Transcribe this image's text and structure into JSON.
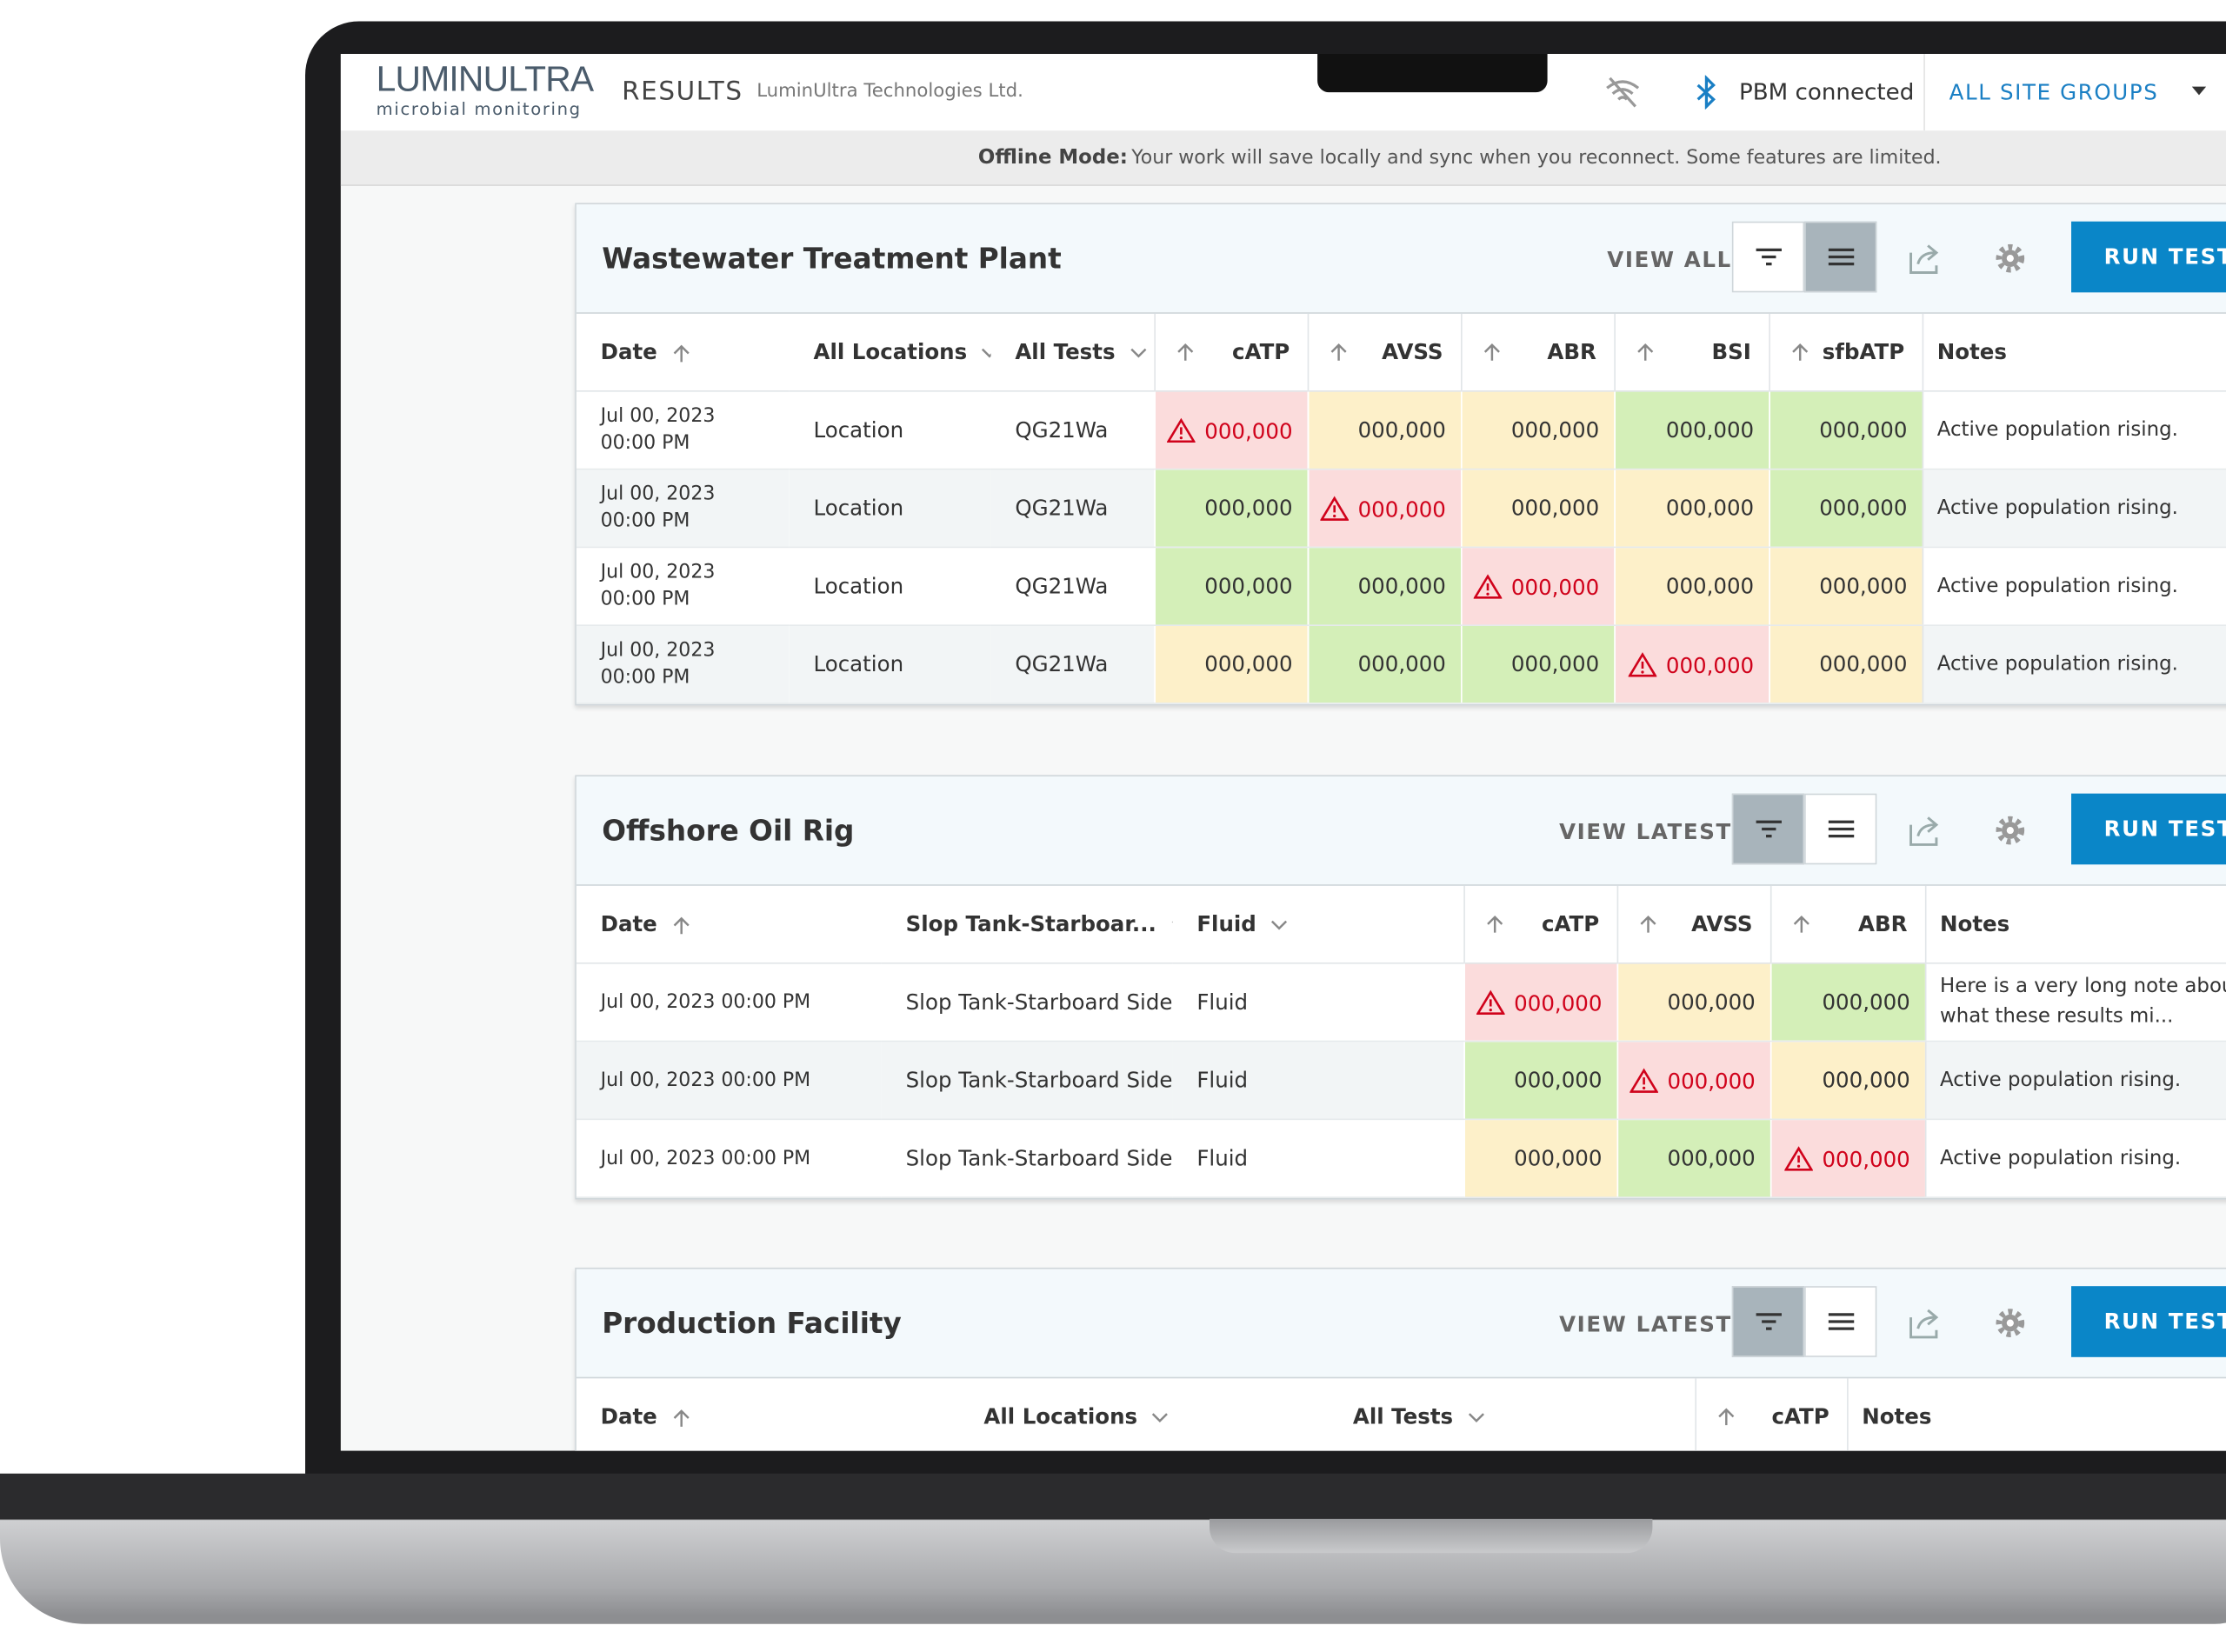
{
  "header": {
    "logo": "LUMINULTRA",
    "logo_sub": "microbial monitoring",
    "section": "RESULTS",
    "company": "LuminUltra Technologies Ltd.",
    "connection": "PBM connected",
    "site_groups": "ALL SITE GROUPS"
  },
  "banner": {
    "label": "Offline Mode:",
    "message": "Your work will save locally and sync when you reconnect. Some features are limited."
  },
  "panels": [
    {
      "title": "Wastewater Treatment Plant",
      "view_button": "VIEW ALL",
      "run_button": "RUN TESTS",
      "filter_active": false,
      "columns": [
        "Date",
        "All Locations",
        "All Tests",
        "cATP",
        "AVSS",
        "ABR",
        "BSI",
        "sfbATP",
        "Notes"
      ],
      "rows": [
        {
          "date": "Jul 00, 2023",
          "time": "00:00 PM",
          "location": "Location",
          "test": "QG21Wa",
          "results": [
            {
              "value": "000,000",
              "level": "high"
            },
            {
              "value": "000,000",
              "level": "warn"
            },
            {
              "value": "000,000",
              "level": "warn"
            },
            {
              "value": "000,000",
              "level": "ok"
            },
            {
              "value": "000,000",
              "level": "ok"
            }
          ],
          "notes": "Active population rising."
        },
        {
          "date": "Jul 00, 2023",
          "time": "00:00 PM",
          "location": "Location",
          "test": "QG21Wa",
          "results": [
            {
              "value": "000,000",
              "level": "ok"
            },
            {
              "value": "000,000",
              "level": "high"
            },
            {
              "value": "000,000",
              "level": "warn"
            },
            {
              "value": "000,000",
              "level": "warn"
            },
            {
              "value": "000,000",
              "level": "ok"
            }
          ],
          "notes": "Active population rising."
        },
        {
          "date": "Jul 00, 2023",
          "time": "00:00 PM",
          "location": "Location",
          "test": "QG21Wa",
          "results": [
            {
              "value": "000,000",
              "level": "ok"
            },
            {
              "value": "000,000",
              "level": "ok"
            },
            {
              "value": "000,000",
              "level": "high"
            },
            {
              "value": "000,000",
              "level": "warn"
            },
            {
              "value": "000,000",
              "level": "warn"
            }
          ],
          "notes": "Active population rising."
        },
        {
          "date": "Jul 00, 2023",
          "time": "00:00 PM",
          "location": "Location",
          "test": "QG21Wa",
          "results": [
            {
              "value": "000,000",
              "level": "warn"
            },
            {
              "value": "000,000",
              "level": "ok"
            },
            {
              "value": "000,000",
              "level": "ok"
            },
            {
              "value": "000,000",
              "level": "high"
            },
            {
              "value": "000,000",
              "level": "warn"
            }
          ],
          "notes": "Active population rising."
        }
      ]
    },
    {
      "title": "Offshore Oil Rig",
      "view_button": "VIEW LATEST",
      "run_button": "RUN TESTS",
      "filter_active": true,
      "columns": [
        "Date",
        "Slop Tank-Starboar...",
        "Fluid",
        "cATP",
        "AVSS",
        "ABR",
        "Notes"
      ],
      "rows": [
        {
          "date": "Jul 00, 2023 00:00 PM",
          "location": "Slop Tank-Starboard Side",
          "test": "Fluid",
          "results": [
            {
              "value": "000,000",
              "level": "high"
            },
            {
              "value": "000,000",
              "level": "warn"
            },
            {
              "value": "000,000",
              "level": "ok"
            }
          ],
          "notes": "Here is a very long note about what these results mi..."
        },
        {
          "date": "Jul 00, 2023 00:00 PM",
          "location": "Slop Tank-Starboard Side",
          "test": "Fluid",
          "results": [
            {
              "value": "000,000",
              "level": "ok"
            },
            {
              "value": "000,000",
              "level": "high"
            },
            {
              "value": "000,000",
              "level": "warn"
            }
          ],
          "notes": "Active population rising."
        },
        {
          "date": "Jul 00, 2023 00:00 PM",
          "location": "Slop Tank-Starboard Side",
          "test": "Fluid",
          "results": [
            {
              "value": "000,000",
              "level": "warn"
            },
            {
              "value": "000,000",
              "level": "ok"
            },
            {
              "value": "000,000",
              "level": "high"
            }
          ],
          "notes": "Active population rising."
        }
      ]
    },
    {
      "title": "Production Facility",
      "view_button": "VIEW LATEST",
      "run_button": "RUN TESTS",
      "filter_active": true,
      "columns": [
        "Date",
        "All Locations",
        "All Tests",
        "cATP",
        "Notes"
      ],
      "rows": []
    }
  ]
}
